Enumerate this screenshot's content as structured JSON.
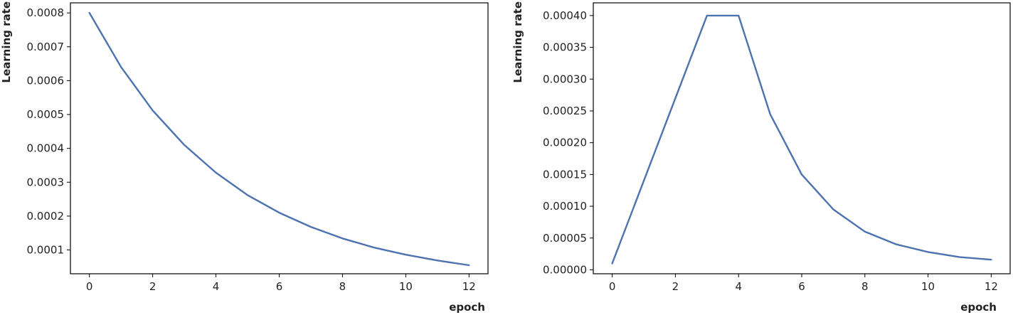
{
  "chart_data": [
    {
      "type": "line",
      "title": "",
      "xlabel": "epoch",
      "ylabel": "Learning rate",
      "grid": false,
      "legend": "none",
      "xlim": [
        -0.6,
        12.6
      ],
      "ylim": [
        2.97e-05,
        0.0008297
      ],
      "xticks": [
        0,
        2,
        4,
        6,
        8,
        10,
        12
      ],
      "xtick_labels": [
        "0",
        "2",
        "4",
        "6",
        "8",
        "10",
        "12"
      ],
      "yticks": [
        0.0001,
        0.0002,
        0.0003,
        0.0004,
        0.0005,
        0.0006,
        0.0007,
        0.0008
      ],
      "ytick_labels": [
        "0.0001",
        "0.0002",
        "0.0003",
        "0.0004",
        "0.0005",
        "0.0006",
        "0.0007",
        "0.0008"
      ],
      "series": [
        {
          "color": "#4c72b0",
          "x": [
            0,
            1,
            2,
            3,
            4,
            5,
            6,
            7,
            8,
            9,
            10,
            11,
            12
          ],
          "y": [
            0.0008,
            0.00064,
            0.000512,
            0.00041,
            0.000328,
            0.000262,
            0.00021,
            0.000168,
            0.000134,
            0.000107,
            8.6e-05,
            6.9e-05,
            5.5e-05
          ]
        }
      ]
    },
    {
      "type": "line",
      "title": "",
      "xlabel": "epoch",
      "ylabel": "Learning rate",
      "grid": false,
      "legend": "none",
      "xlim": [
        -0.6,
        12.6
      ],
      "ylim": [
        -6.2e-06,
        0.00042
      ],
      "xticks": [
        0,
        2,
        4,
        6,
        8,
        10,
        12
      ],
      "xtick_labels": [
        "0",
        "2",
        "4",
        "6",
        "8",
        "10",
        "12"
      ],
      "yticks": [
        0,
        5e-05,
        0.0001,
        0.00015,
        0.0002,
        0.00025,
        0.0003,
        0.00035,
        0.0004
      ],
      "ytick_labels": [
        "0.00000",
        "0.00005",
        "0.00010",
        "0.00015",
        "0.00020",
        "0.00025",
        "0.00030",
        "0.00035",
        "0.00040"
      ],
      "series": [
        {
          "color": "#4c72b0",
          "x": [
            0,
            1,
            2,
            3,
            4,
            5,
            6,
            7,
            8,
            9,
            10,
            11,
            12
          ],
          "y": [
            1e-05,
            0.00014,
            0.00027,
            0.0004,
            0.0004,
            0.000245,
            0.00015,
            9.5e-05,
            6e-05,
            4e-05,
            2.8e-05,
            2e-05,
            1.6e-05
          ]
        }
      ]
    }
  ]
}
